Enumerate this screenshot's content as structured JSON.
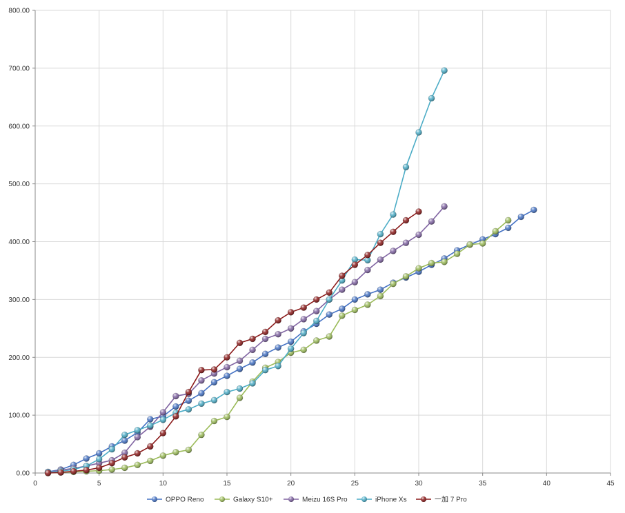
{
  "chart_data": {
    "type": "line",
    "title": "",
    "xlabel": "",
    "ylabel": "",
    "xlim": [
      0,
      45
    ],
    "ylim": [
      0,
      800
    ],
    "x_ticks": [
      "0",
      "5",
      "10",
      "15",
      "20",
      "25",
      "30",
      "35",
      "40",
      "45"
    ],
    "y_ticks": [
      "0.00",
      "100.00",
      "200.00",
      "300.00",
      "400.00",
      "500.00",
      "600.00",
      "700.00",
      "800.00"
    ],
    "grid": true,
    "legend_position": "bottom",
    "series": [
      {
        "name": "OPPO Reno",
        "color": "#4472c4",
        "x": [
          1,
          2,
          3,
          4,
          5,
          6,
          7,
          8,
          9,
          10,
          11,
          12,
          13,
          14,
          15,
          16,
          17,
          18,
          19,
          20,
          21,
          22,
          23,
          24,
          25,
          26,
          27,
          28,
          29,
          30,
          31,
          32,
          33,
          34,
          35,
          36,
          37,
          38,
          39
        ],
        "y": [
          2,
          6,
          14,
          25,
          34,
          46,
          56,
          70,
          93,
          98,
          115,
          125,
          138,
          157,
          168,
          180,
          191,
          206,
          217,
          227,
          245,
          258,
          274,
          284,
          300,
          309,
          317,
          329,
          338,
          348,
          360,
          371,
          385,
          395,
          404,
          413,
          424,
          443,
          455
        ]
      },
      {
        "name": "Galaxy S10+",
        "color": "#9bbb59",
        "x": [
          1,
          2,
          3,
          4,
          5,
          6,
          7,
          8,
          9,
          10,
          11,
          12,
          13,
          14,
          15,
          16,
          17,
          18,
          19,
          20,
          21,
          22,
          23,
          24,
          25,
          26,
          27,
          28,
          29,
          30,
          31,
          32,
          33,
          34,
          35,
          36,
          37
        ],
        "y": [
          0,
          1,
          2,
          3,
          4,
          6,
          9,
          14,
          21,
          30,
          36,
          40,
          66,
          90,
          97,
          130,
          158,
          182,
          192,
          208,
          213,
          229,
          236,
          272,
          282,
          291,
          306,
          327,
          340,
          354,
          363,
          365,
          379,
          395,
          397,
          418,
          437
        ]
      },
      {
        "name": "Meizu 16S Pro",
        "color": "#8064a2",
        "x": [
          1,
          2,
          3,
          4,
          5,
          6,
          7,
          8,
          9,
          10,
          11,
          12,
          13,
          14,
          15,
          16,
          17,
          18,
          19,
          20,
          21,
          22,
          23,
          24,
          25,
          26,
          27,
          28,
          29,
          30,
          31,
          32
        ],
        "y": [
          1,
          5,
          8,
          12,
          17,
          22,
          35,
          62,
          80,
          105,
          133,
          137,
          160,
          172,
          183,
          194,
          213,
          232,
          240,
          250,
          266,
          280,
          300,
          317,
          330,
          351,
          369,
          384,
          398,
          412,
          435,
          461
        ]
      },
      {
        "name": "iPhone Xs",
        "color": "#4bacc6",
        "x": [
          1,
          2,
          3,
          4,
          5,
          6,
          7,
          8,
          9,
          10,
          11,
          12,
          13,
          14,
          15,
          16,
          17,
          18,
          19,
          20,
          21,
          22,
          23,
          24,
          25,
          26,
          27,
          28,
          29,
          30,
          31,
          32
        ],
        "y": [
          1,
          3,
          6,
          12,
          24,
          41,
          66,
          74,
          82,
          92,
          104,
          110,
          120,
          126,
          140,
          146,
          155,
          178,
          185,
          215,
          242,
          263,
          300,
          333,
          369,
          368,
          413,
          447,
          529,
          589,
          648,
          696
        ]
      },
      {
        "name": "一加 7 Pro",
        "color": "#8b1a1a",
        "x": [
          1,
          2,
          3,
          4,
          5,
          6,
          7,
          8,
          9,
          10,
          11,
          12,
          13,
          14,
          15,
          16,
          17,
          18,
          19,
          20,
          21,
          22,
          23,
          24,
          25,
          26,
          27,
          28,
          29,
          30
        ],
        "y": [
          0,
          1,
          3,
          5,
          9,
          17,
          27,
          34,
          46,
          69,
          98,
          140,
          178,
          179,
          200,
          225,
          232,
          244,
          264,
          278,
          286,
          300,
          312,
          341,
          360,
          377,
          398,
          417,
          437,
          452
        ]
      }
    ]
  }
}
